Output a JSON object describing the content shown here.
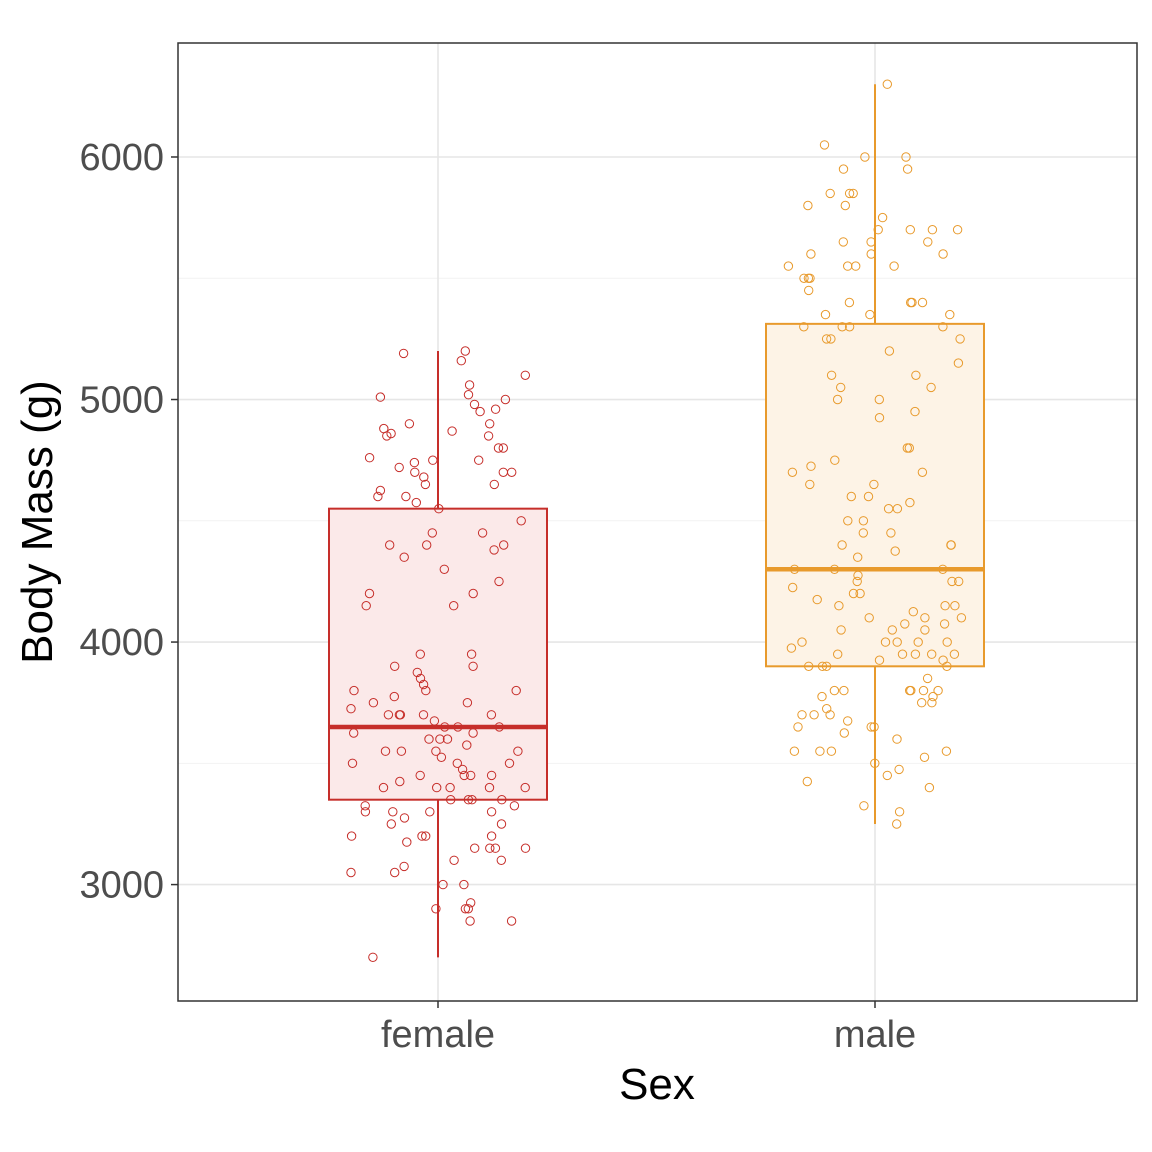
{
  "chart_data": {
    "type": "box",
    "xlabel": "Sex",
    "ylabel": "Body Mass (g)",
    "title": "",
    "categories": [
      "female",
      "male"
    ],
    "ylim": [
      2520,
      6470
    ],
    "yticks": [
      3000,
      4000,
      5000,
      6000
    ],
    "grid": true,
    "legend": "none",
    "series": [
      {
        "category": "female",
        "color": "#c62e2a",
        "fill": "#fbe9e9",
        "stats": {
          "min": 2700,
          "q1": 3350,
          "median": 3650,
          "q3": 4550,
          "max": 5200
        },
        "points": [
          5200,
          5190,
          5160,
          5100,
          5060,
          5020,
          5010,
          5000,
          4980,
          4960,
          4950,
          4900,
          4900,
          4880,
          4870,
          4860,
          4850,
          4850,
          4800,
          4800,
          4760,
          4750,
          4750,
          4740,
          4720,
          4700,
          4700,
          4700,
          4680,
          4650,
          4650,
          4625,
          4600,
          4600,
          4575,
          4550,
          4500,
          4450,
          4450,
          4400,
          4400,
          4400,
          4380,
          4350,
          4300,
          4250,
          4200,
          4200,
          4150,
          4150,
          3950,
          3950,
          3900,
          3900,
          3875,
          3850,
          3825,
          3800,
          3800,
          3800,
          3775,
          3750,
          3750,
          3725,
          3700,
          3700,
          3700,
          3700,
          3700,
          3675,
          3650,
          3650,
          3650,
          3625,
          3625,
          3600,
          3600,
          3600,
          3575,
          3550,
          3550,
          3550,
          3550,
          3525,
          3500,
          3500,
          3500,
          3475,
          3450,
          3450,
          3450,
          3450,
          3425,
          3400,
          3400,
          3400,
          3400,
          3400,
          3350,
          3350,
          3350,
          3350,
          3325,
          3325,
          3300,
          3300,
          3300,
          3300,
          3275,
          3250,
          3250,
          3200,
          3200,
          3200,
          3200,
          3175,
          3150,
          3150,
          3150,
          3150,
          3100,
          3100,
          3075,
          3050,
          3050,
          3000,
          3000,
          2925,
          2900,
          2900,
          2900,
          2850,
          2850,
          2700
        ]
      },
      {
        "category": "male",
        "color": "#e89a2c",
        "fill": "#fdf3e6",
        "stats": {
          "min": 3250,
          "q1": 3900,
          "median": 4300,
          "q3": 5312,
          "max": 6300
        },
        "points": [
          6300,
          6050,
          6000,
          6000,
          5950,
          5950,
          5850,
          5850,
          5850,
          5800,
          5800,
          5750,
          5700,
          5700,
          5700,
          5700,
          5650,
          5650,
          5650,
          5600,
          5600,
          5600,
          5550,
          5550,
          5550,
          5550,
          5500,
          5500,
          5500,
          5450,
          5400,
          5400,
          5400,
          5400,
          5350,
          5350,
          5350,
          5300,
          5300,
          5300,
          5300,
          5250,
          5250,
          5250,
          5200,
          5150,
          5100,
          5100,
          5050,
          5050,
          5000,
          5000,
          4950,
          4925,
          4800,
          4800,
          4750,
          4725,
          4700,
          4700,
          4650,
          4650,
          4600,
          4600,
          4575,
          4550,
          4550,
          4500,
          4500,
          4450,
          4450,
          4400,
          4400,
          4400,
          4375,
          4350,
          4300,
          4300,
          4300,
          4275,
          4250,
          4250,
          4250,
          4225,
          4200,
          4200,
          4175,
          4150,
          4150,
          4150,
          4125,
          4100,
          4100,
          4100,
          4075,
          4075,
          4050,
          4050,
          4050,
          4000,
          4000,
          4000,
          4000,
          4000,
          3975,
          3950,
          3950,
          3950,
          3950,
          3950,
          3925,
          3925,
          3900,
          3900,
          3900,
          3900,
          3850,
          3800,
          3800,
          3800,
          3800,
          3800,
          3800,
          3775,
          3775,
          3750,
          3750,
          3725,
          3700,
          3700,
          3700,
          3675,
          3650,
          3650,
          3650,
          3625,
          3600,
          3550,
          3550,
          3550,
          3550,
          3525,
          3500,
          3475,
          3450,
          3425,
          3400,
          3325,
          3300,
          3250
        ]
      }
    ]
  }
}
